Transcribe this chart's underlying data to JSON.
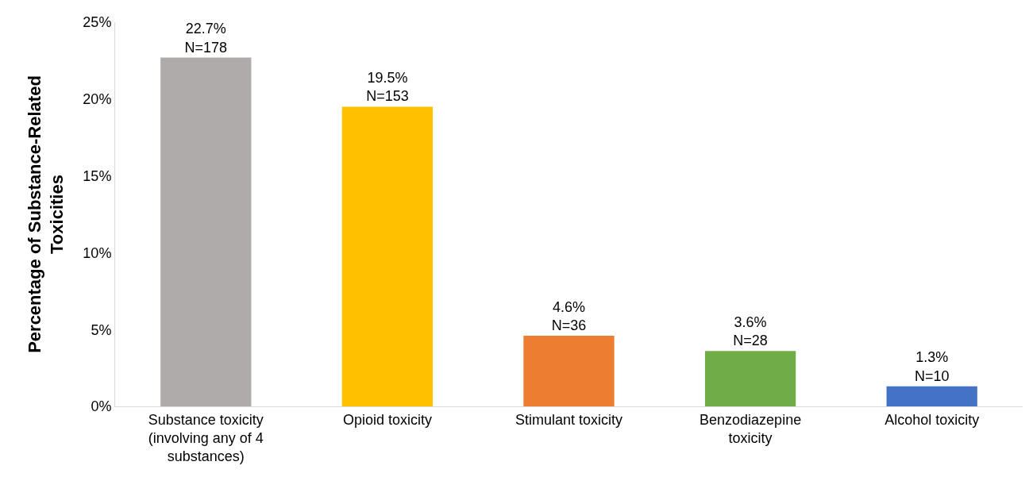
{
  "chart_data": {
    "type": "bar",
    "ylabel": "Percentage of Substance-Related Toxicities",
    "categories": [
      "Substance toxicity (involving any of 4 substances)",
      "Opioid toxicity",
      "Stimulant toxicity",
      "Benzodiazepine toxicity",
      "Alcohol toxicity"
    ],
    "values": [
      22.7,
      19.5,
      4.6,
      3.6,
      1.3
    ],
    "colors": [
      "#afabab",
      "#ffc000",
      "#ed7d31",
      "#70ad47",
      "#4472c4"
    ],
    "value_labels": [
      "22.7%\nN=178",
      "19.5%\nN=153",
      "4.6%\nN=36",
      "3.6%\nN=28",
      "1.3%\nN=10"
    ],
    "ylim": [
      0,
      25
    ],
    "yticks": [
      {
        "value": 0,
        "label": "0%"
      },
      {
        "value": 5,
        "label": "5%"
      },
      {
        "value": 10,
        "label": "10%"
      },
      {
        "value": 15,
        "label": "15%"
      },
      {
        "value": 20,
        "label": "20%"
      },
      {
        "value": 25,
        "label": "25%"
      }
    ],
    "grid": false
  }
}
